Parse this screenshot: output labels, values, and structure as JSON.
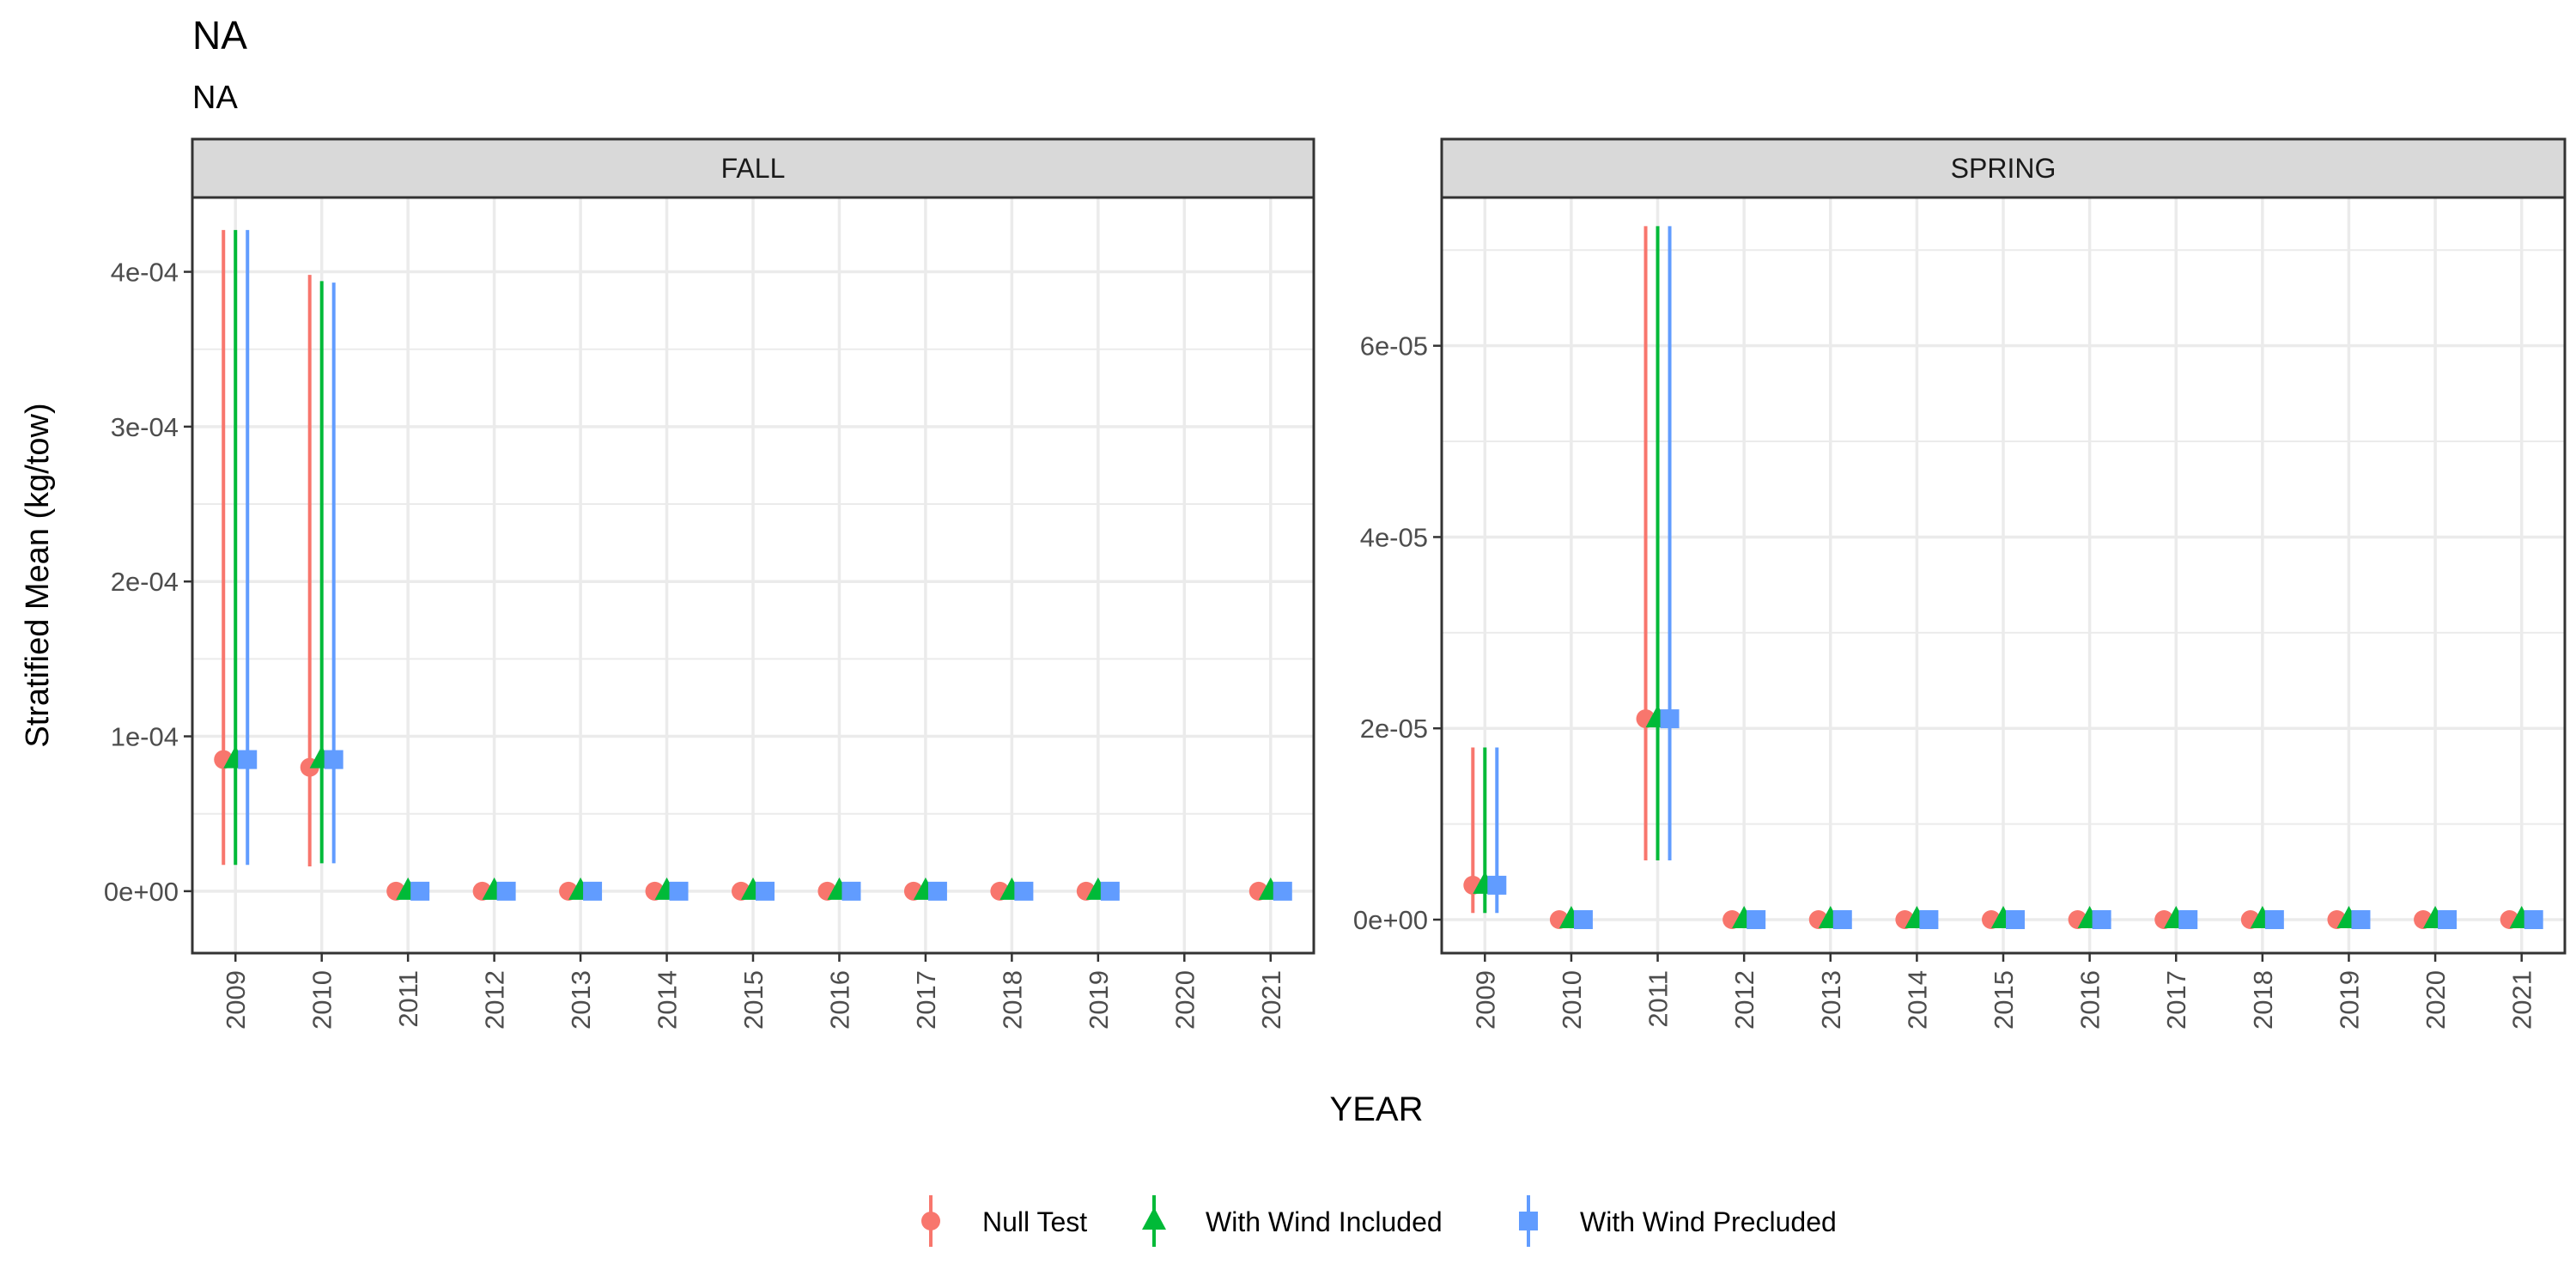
{
  "title": "NA",
  "subtitle": "NA",
  "ylabel": "Stratified Mean (kg/tow)",
  "xlabel": "YEAR",
  "legend": {
    "position": "bottom",
    "items": [
      {
        "label": "Null Test",
        "color": "#F8766D",
        "shape": "circle"
      },
      {
        "label": "With Wind Included",
        "color": "#00BA38",
        "shape": "triangle"
      },
      {
        "label": "With Wind Precluded",
        "color": "#619CFF",
        "shape": "square"
      }
    ]
  },
  "colors": {
    "null_test": "#F8766D",
    "wind_included": "#00BA38",
    "wind_precluded": "#619CFF",
    "strip_fill": "#d9d9d9",
    "grid": "#ebebeb",
    "axis_text": "#4d4d4d"
  },
  "chart_data": [
    {
      "type": "scatter",
      "facet": "FALL",
      "x": [
        "2009",
        "2010",
        "2011",
        "2012",
        "2013",
        "2014",
        "2015",
        "2016",
        "2017",
        "2018",
        "2019",
        "2020",
        "2021"
      ],
      "ylim": [
        -4e-05,
        0.000448
      ],
      "yticks": [
        0,
        0.0001,
        0.0002,
        0.0003,
        0.0004
      ],
      "ytick_labels": [
        "0e+00",
        "1e-04",
        "2e-04",
        "3e-04",
        "4e-04"
      ],
      "grid": true,
      "series": [
        {
          "name": "Null Test",
          "values": [
            8.5e-05,
            8e-05,
            0,
            0,
            0,
            0,
            0,
            0,
            0,
            0,
            0,
            null,
            0
          ],
          "lower": [
            1.7e-05,
            1.6e-05,
            null,
            null,
            null,
            null,
            null,
            null,
            null,
            null,
            null,
            null,
            null
          ],
          "upper": [
            0.000427,
            0.000398,
            null,
            null,
            null,
            null,
            null,
            null,
            null,
            null,
            null,
            null,
            null
          ]
        },
        {
          "name": "With Wind Included",
          "values": [
            8.5e-05,
            8.5e-05,
            0,
            0,
            0,
            0,
            0,
            0,
            0,
            0,
            0,
            null,
            0
          ],
          "lower": [
            1.7e-05,
            1.8e-05,
            null,
            null,
            null,
            null,
            null,
            null,
            null,
            null,
            null,
            null,
            null
          ],
          "upper": [
            0.000427,
            0.000394,
            null,
            null,
            null,
            null,
            null,
            null,
            null,
            null,
            null,
            null,
            null
          ]
        },
        {
          "name": "With Wind Precluded",
          "values": [
            8.5e-05,
            8.5e-05,
            0,
            0,
            0,
            0,
            0,
            0,
            0,
            0,
            0,
            null,
            0
          ],
          "lower": [
            1.7e-05,
            1.8e-05,
            null,
            null,
            null,
            null,
            null,
            null,
            null,
            null,
            null,
            null,
            null
          ],
          "upper": [
            0.000427,
            0.000393,
            null,
            null,
            null,
            null,
            null,
            null,
            null,
            null,
            null,
            null,
            null
          ]
        }
      ]
    },
    {
      "type": "scatter",
      "facet": "SPRING",
      "x": [
        "2009",
        "2010",
        "2011",
        "2012",
        "2013",
        "2014",
        "2015",
        "2016",
        "2017",
        "2018",
        "2019",
        "2020",
        "2021"
      ],
      "ylim": [
        -3.5e-06,
        7.55e-05
      ],
      "yticks": [
        0,
        2e-05,
        4e-05,
        6e-05
      ],
      "ytick_labels": [
        "0e+00",
        "2e-05",
        "4e-05",
        "6e-05"
      ],
      "grid": true,
      "series": [
        {
          "name": "Null Test",
          "values": [
            3.6e-06,
            0,
            2.1e-05,
            0,
            0,
            0,
            0,
            0,
            0,
            0,
            0,
            0,
            0
          ],
          "lower": [
            7e-07,
            null,
            6.2e-06,
            null,
            null,
            null,
            null,
            null,
            null,
            null,
            null,
            null,
            null
          ],
          "upper": [
            1.8e-05,
            null,
            7.25e-05,
            null,
            null,
            null,
            null,
            null,
            null,
            null,
            null,
            null,
            null
          ]
        },
        {
          "name": "With Wind Included",
          "values": [
            3.6e-06,
            0,
            2.1e-05,
            0,
            0,
            0,
            0,
            0,
            0,
            0,
            0,
            0,
            0
          ],
          "lower": [
            7e-07,
            null,
            6.2e-06,
            null,
            null,
            null,
            null,
            null,
            null,
            null,
            null,
            null,
            null
          ],
          "upper": [
            1.8e-05,
            null,
            7.25e-05,
            null,
            null,
            null,
            null,
            null,
            null,
            null,
            null,
            null,
            null
          ]
        },
        {
          "name": "With Wind Precluded",
          "values": [
            3.6e-06,
            0,
            2.1e-05,
            0,
            0,
            0,
            0,
            0,
            0,
            0,
            0,
            0,
            0
          ],
          "lower": [
            7e-07,
            null,
            6.2e-06,
            null,
            null,
            null,
            null,
            null,
            null,
            null,
            null,
            null,
            null
          ],
          "upper": [
            1.8e-05,
            null,
            7.25e-05,
            null,
            null,
            null,
            null,
            null,
            null,
            null,
            null,
            null,
            null
          ]
        }
      ]
    }
  ]
}
